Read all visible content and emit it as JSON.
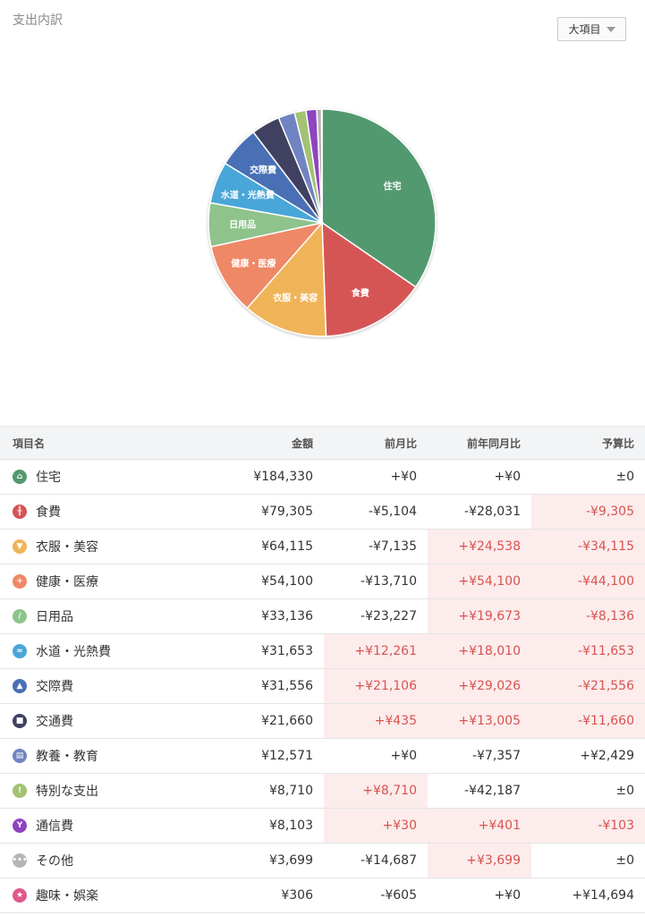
{
  "title": "支出内訳",
  "dropdown": {
    "label": "大項目"
  },
  "chart_data": {
    "type": "pie",
    "slices": [
      {
        "label": "住宅",
        "value": 184330,
        "color": "#52996f",
        "show_label": true
      },
      {
        "label": "食費",
        "value": 79305,
        "color": "#d55454",
        "show_label": true
      },
      {
        "label": "衣服・美容",
        "value": 64115,
        "color": "#f0b458",
        "show_label": true
      },
      {
        "label": "健康・医療",
        "value": 54100,
        "color": "#ee8866",
        "show_label": true
      },
      {
        "label": "日用品",
        "value": 33136,
        "color": "#8ec38b",
        "show_label": true
      },
      {
        "label": "水道・光熱費",
        "value": 31653,
        "color": "#4aa6d8",
        "show_label": true
      },
      {
        "label": "交際費",
        "value": 31556,
        "color": "#4a6fb5",
        "show_label": true
      },
      {
        "label": "交通費",
        "value": 21660,
        "color": "#3f4160",
        "show_label": false
      },
      {
        "label": "教養・教育",
        "value": 12571,
        "color": "#7184c2",
        "show_label": false
      },
      {
        "label": "特別な支出",
        "value": 8710,
        "color": "#a3c273",
        "show_label": false
      },
      {
        "label": "通信費",
        "value": 8103,
        "color": "#8e44c0",
        "show_label": false
      },
      {
        "label": "その他",
        "value": 3699,
        "color": "#b5b5b5",
        "show_label": false
      },
      {
        "label": "趣味・娯楽",
        "value": 306,
        "color": "#e0588a",
        "show_label": false
      }
    ]
  },
  "table": {
    "headers": [
      "項目名",
      "金額",
      "前月比",
      "前年同月比",
      "予算比"
    ],
    "rows": [
      {
        "name": "住宅",
        "icon": "home-icon",
        "glyph": "⌂",
        "color": "#52996f",
        "amount": "¥184,330",
        "mom": "+¥0",
        "yoy": "+¥0",
        "budget": "±0",
        "hl": [
          false,
          false,
          false
        ]
      },
      {
        "name": "食費",
        "icon": "fork-knife-icon",
        "glyph": "╫",
        "color": "#d55454",
        "amount": "¥79,305",
        "mom": "-¥5,104",
        "yoy": "-¥28,031",
        "budget": "-¥9,305",
        "hl": [
          false,
          false,
          true
        ]
      },
      {
        "name": "衣服・美容",
        "icon": "shirt-icon",
        "glyph": "▼",
        "color": "#f0b458",
        "amount": "¥64,115",
        "mom": "-¥7,135",
        "yoy": "+¥24,538",
        "budget": "-¥34,115",
        "hl": [
          false,
          true,
          true
        ]
      },
      {
        "name": "健康・医療",
        "icon": "medical-cross-icon",
        "glyph": "+",
        "color": "#ee8866",
        "amount": "¥54,100",
        "mom": "-¥13,710",
        "yoy": "+¥54,100",
        "budget": "-¥44,100",
        "hl": [
          false,
          true,
          true
        ]
      },
      {
        "name": "日用品",
        "icon": "pill-icon",
        "glyph": "∕",
        "color": "#8ec38b",
        "amount": "¥33,136",
        "mom": "-¥23,227",
        "yoy": "+¥19,673",
        "budget": "-¥8,136",
        "hl": [
          false,
          true,
          true
        ]
      },
      {
        "name": "水道・光熱費",
        "icon": "faucet-icon",
        "glyph": "≈",
        "color": "#4aa6d8",
        "amount": "¥31,653",
        "mom": "+¥12,261",
        "yoy": "+¥18,010",
        "budget": "-¥11,653",
        "hl": [
          true,
          true,
          true
        ]
      },
      {
        "name": "交際費",
        "icon": "building-icon",
        "glyph": "▲",
        "color": "#4a6fb5",
        "amount": "¥31,556",
        "mom": "+¥21,106",
        "yoy": "+¥29,026",
        "budget": "-¥21,556",
        "hl": [
          true,
          true,
          true
        ]
      },
      {
        "name": "交通費",
        "icon": "train-icon",
        "glyph": "■",
        "color": "#3f4160",
        "amount": "¥21,660",
        "mom": "+¥435",
        "yoy": "+¥13,005",
        "budget": "-¥11,660",
        "hl": [
          true,
          true,
          true
        ]
      },
      {
        "name": "教養・教育",
        "icon": "book-icon",
        "glyph": "▤",
        "color": "#7184c2",
        "amount": "¥12,571",
        "mom": "+¥0",
        "yoy": "-¥7,357",
        "budget": "+¥2,429",
        "hl": [
          false,
          false,
          false
        ]
      },
      {
        "name": "特別な支出",
        "icon": "exclamation-icon",
        "glyph": "!",
        "color": "#a3c273",
        "amount": "¥8,710",
        "mom": "+¥8,710",
        "yoy": "-¥42,187",
        "budget": "±0",
        "hl": [
          true,
          false,
          false
        ]
      },
      {
        "name": "通信費",
        "icon": "antenna-icon",
        "glyph": "Y",
        "color": "#8e44c0",
        "amount": "¥8,103",
        "mom": "+¥30",
        "yoy": "+¥401",
        "budget": "-¥103",
        "hl": [
          true,
          true,
          true
        ]
      },
      {
        "name": "その他",
        "icon": "dots-icon",
        "glyph": "•••",
        "color": "#b5b5b5",
        "amount": "¥3,699",
        "mom": "-¥14,687",
        "yoy": "+¥3,699",
        "budget": "±0",
        "hl": [
          false,
          true,
          false
        ]
      },
      {
        "name": "趣味・娯楽",
        "icon": "star-icon",
        "glyph": "★",
        "color": "#e0588a",
        "amount": "¥306",
        "mom": "-¥605",
        "yoy": "+¥0",
        "budget": "+¥14,694",
        "hl": [
          false,
          false,
          false
        ]
      }
    ]
  }
}
